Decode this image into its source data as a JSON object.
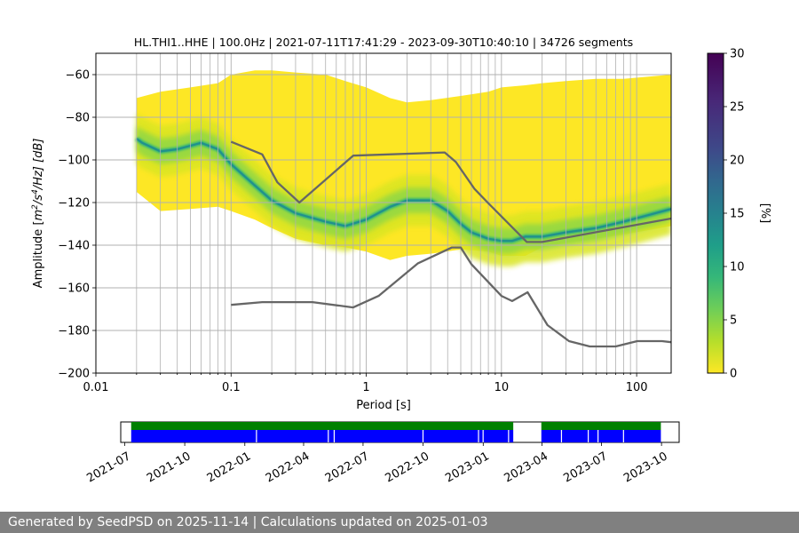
{
  "chart_data": {
    "type": "heatmap",
    "title": "HL.THI1..HHE | 100.0Hz | 2021-07-11T17:41:29 - 2023-09-30T10:40:10 | 34726 segments",
    "xlabel": "Period [s]",
    "ylabel_parts": {
      "pre": "Amplitude [",
      "m": "m",
      "exp2": "2",
      "s": "/s",
      "exp4": "4",
      "hz": "/Hz] [dB]"
    },
    "x_scale": "log",
    "xlim": [
      0.01,
      180
    ],
    "ylim": [
      -200,
      -50
    ],
    "x_ticks": [
      0.01,
      0.1,
      1,
      10,
      100
    ],
    "x_tick_labels": [
      "0.01",
      "0.1",
      "1",
      "10",
      "100"
    ],
    "y_ticks": [
      -200,
      -180,
      -160,
      -140,
      -120,
      -100,
      -80,
      -60
    ],
    "y_tick_labels": [
      "−200",
      "−180",
      "−160",
      "−140",
      "−120",
      "−100",
      "−80",
      "−60"
    ],
    "grid": true,
    "colormap": "viridis_r",
    "colorbar": {
      "label": "[%]",
      "range": [
        0,
        30
      ],
      "ticks": [
        0,
        5,
        10,
        15,
        20,
        25,
        30
      ]
    },
    "mode_curve": {
      "period": [
        0.02,
        0.022,
        0.03,
        0.04,
        0.06,
        0.08,
        0.1,
        0.15,
        0.2,
        0.3,
        0.5,
        0.7,
        1,
        1.5,
        2,
        3,
        4,
        5,
        6,
        8,
        10,
        12,
        15,
        20,
        30,
        50,
        80,
        120,
        180
      ],
      "db": [
        -90,
        -92,
        -96,
        -95,
        -92,
        -95,
        -102,
        -112,
        -119,
        -125,
        -129,
        -131,
        -128,
        -122,
        -119,
        -119,
        -124,
        -130,
        -134,
        -137,
        -138,
        -138,
        -136,
        -136,
        -134,
        -132,
        -129,
        -126,
        -123
      ]
    },
    "spread": {
      "period": [
        0.02,
        0.03,
        0.05,
        0.08,
        0.1,
        0.15,
        0.2,
        0.3,
        0.5,
        0.7,
        1,
        1.5,
        2,
        3,
        5,
        8,
        10,
        15,
        20,
        30,
        50,
        80,
        120,
        180
      ],
      "upper_db": [
        -71,
        -68,
        -66,
        -64,
        -60,
        -58,
        -58,
        -59,
        -60,
        -63,
        -66,
        -71,
        -73,
        -72,
        -70,
        -68,
        -66,
        -65,
        -64,
        -63,
        -62,
        -62,
        -61,
        -60
      ],
      "lower_db": [
        -115,
        -124,
        -123,
        -122,
        -124,
        -128,
        -132,
        -137,
        -140,
        -141,
        -143,
        -147,
        -145,
        -144,
        -142,
        -143,
        -145,
        -145,
        -141,
        -139,
        -137,
        -135,
        -133,
        -131
      ]
    },
    "noise_models": [
      {
        "period": [
          0.1,
          0.17,
          0.22,
          0.32,
          0.8,
          3.8,
          4.6,
          6.3,
          7.9,
          15.4,
          20,
          180
        ],
        "db": [
          -91.5,
          -97.4,
          -110.5,
          -120,
          -98,
          -96.5,
          -101,
          -113.5,
          -120,
          -138.5,
          -138.5,
          -127.5
        ]
      },
      {
        "period": [
          0.1,
          0.17,
          0.4,
          0.8,
          1.24,
          2.4,
          4.3,
          5,
          6,
          10,
          12,
          15.6,
          21.9,
          31.6,
          45,
          70,
          101,
          154,
          180
        ],
        "db": [
          -168,
          -166.7,
          -166.7,
          -169.2,
          -163.7,
          -148.6,
          -141.1,
          -141.1,
          -149,
          -163.8,
          -166.2,
          -162.1,
          -177.5,
          -185,
          -187.5,
          -187.5,
          -185,
          -185,
          -185.5
        ]
      }
    ],
    "availability": {
      "x_tick_labels": [
        "2021-07",
        "2021-10",
        "2022-01",
        "2022-04",
        "2022-07",
        "2022-10",
        "2023-01",
        "2023-04",
        "2023-07",
        "2023-10"
      ],
      "x_tick_months": [
        "2021-07",
        "2021-10",
        "2022-01",
        "2022-04",
        "2022-07",
        "2022-10",
        "2023-01",
        "2023-04",
        "2023-07",
        "2023-10"
      ],
      "range": [
        "2021-06-25",
        "2023-10-28"
      ],
      "green_segments": [
        [
          "2021-07-11",
          "2023-02-16"
        ],
        [
          "2023-03-31",
          "2023-09-30"
        ]
      ],
      "blue_segments": [
        [
          "2021-07-11",
          "2023-02-16"
        ],
        [
          "2023-03-31",
          "2023-09-30"
        ]
      ],
      "gaps": [
        "2022-01-18",
        "2022-05-08",
        "2022-05-17",
        "2022-09-30",
        "2022-12-24",
        "2022-12-31",
        "2023-02-08",
        "2023-04-30",
        "2023-06-10",
        "2023-06-25",
        "2023-08-03"
      ]
    },
    "colors": {
      "model": "#666666",
      "grid": "#b0b0b0",
      "green": "#008000",
      "blue": "#0000ff"
    }
  },
  "footer": "Generated by SeedPSD on 2025-11-14 | Calculations updated on 2025-01-03"
}
